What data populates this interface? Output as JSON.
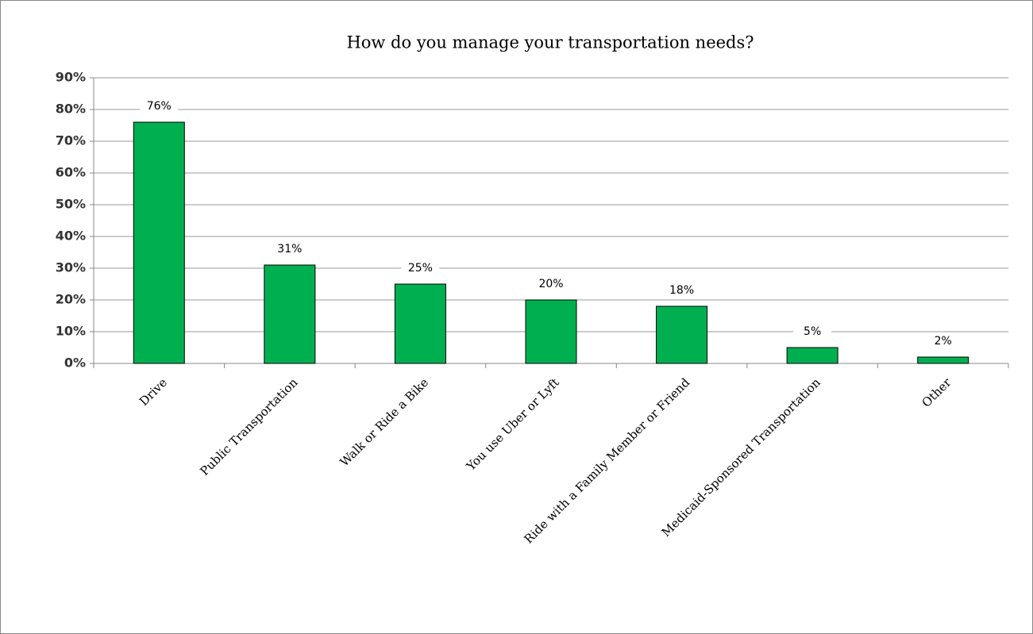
{
  "chart_data": {
    "type": "bar",
    "title": "How do you manage your transportation needs?",
    "categories": [
      "Drive",
      "Public Transportation",
      "Walk or Ride a Bike",
      "You use Uber or Lyft",
      "Ride with a Family Member or Friend",
      "Medicaid-Sponsored Transportation",
      "Other"
    ],
    "values": [
      76,
      31,
      25,
      20,
      18,
      5,
      2
    ],
    "value_labels": [
      "76%",
      "31%",
      "25%",
      "20%",
      "18%",
      "5%",
      "2%"
    ],
    "color": "#00b050",
    "ylim": [
      0,
      90
    ],
    "yticks": [
      {
        "value": 0,
        "label": "0%"
      },
      {
        "value": 10,
        "label": "10%"
      },
      {
        "value": 20,
        "label": "20%"
      },
      {
        "value": 30,
        "label": "30%"
      },
      {
        "value": 40,
        "label": "40%"
      },
      {
        "value": 50,
        "label": "50%"
      },
      {
        "value": 60,
        "label": "60%"
      },
      {
        "value": 70,
        "label": "70%"
      },
      {
        "value": 80,
        "label": "80%"
      },
      {
        "value": 90,
        "label": "90%"
      }
    ],
    "grid": true
  }
}
